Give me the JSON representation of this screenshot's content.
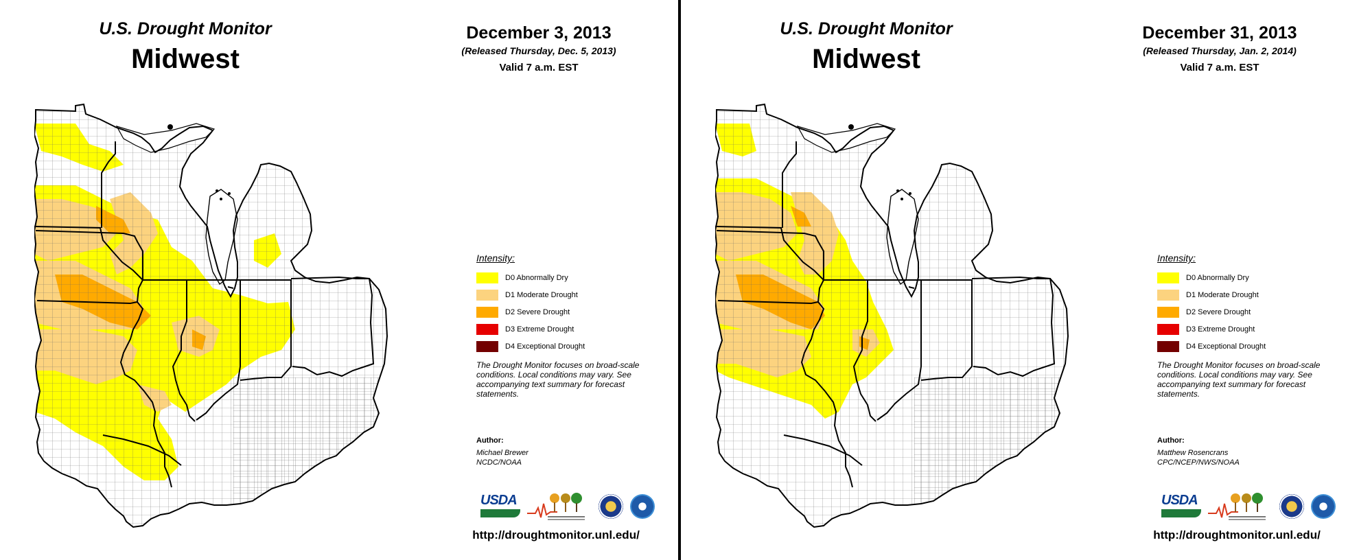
{
  "panels": [
    {
      "brand_title": "U.S. Drought Monitor",
      "region_title": "Midwest",
      "date": "December 3, 2013",
      "released": "(Released Thursday, Dec. 5, 2013)",
      "valid": "Valid 7 a.m. EST",
      "author_heading": "Author:",
      "author_name": "Michael Brewer",
      "author_org": "NCDC/NOAA",
      "url": "http://droughtmonitor.unl.edu/"
    },
    {
      "brand_title": "U.S. Drought Monitor",
      "region_title": "Midwest",
      "date": "December 31, 2013",
      "released": "(Released Thursday, Jan. 2, 2014)",
      "valid": "Valid 7 a.m. EST",
      "author_heading": "Author:",
      "author_name": "Matthew Rosencrans",
      "author_org": "CPC/NCEP/NWS/NOAA",
      "url": "http://droughtmonitor.unl.edu/"
    }
  ],
  "legend": {
    "title": "Intensity:",
    "items": [
      {
        "label": "D0 Abnormally Dry",
        "color": "#ffff00"
      },
      {
        "label": "D1 Moderate Drought",
        "color": "#fcd37f"
      },
      {
        "label": "D2 Severe Drought",
        "color": "#ffaa00"
      },
      {
        "label": "D3 Extreme Drought",
        "color": "#e60000"
      },
      {
        "label": "D4 Exceptional Drought",
        "color": "#730000"
      }
    ],
    "note": "The Drought Monitor focuses on broad-scale conditions. Local conditions may vary. See accompanying text summary for forecast statements."
  },
  "logos": {
    "usda": "USDA",
    "ndmc_icon": "ndmc-tree-logo-icon",
    "doc_icon": "department-of-commerce-seal-icon",
    "noaa_icon": "noaa-logo-icon"
  },
  "map_colors": {
    "none": "#ffffff",
    "border": "#000000",
    "county": "#666666",
    "lake": "#ffffff"
  }
}
